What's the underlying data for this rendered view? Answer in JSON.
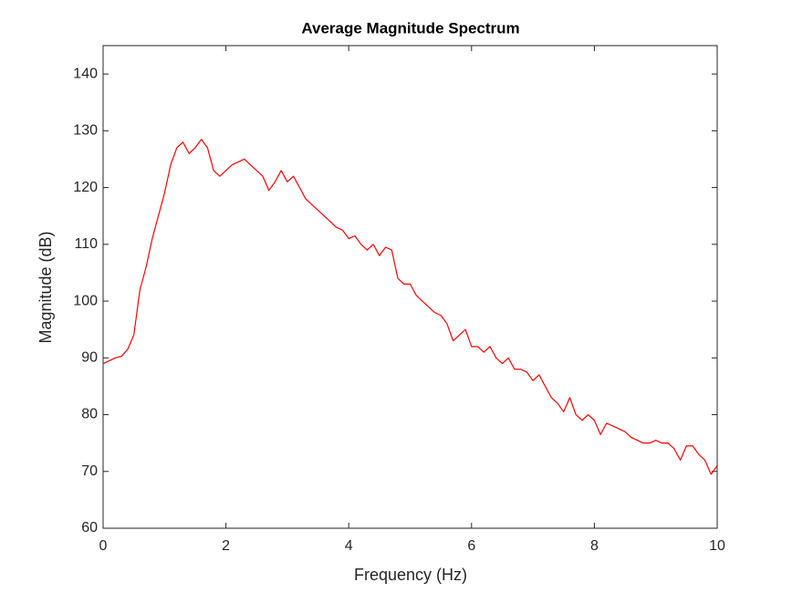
{
  "chart_data": {
    "type": "line",
    "title": "Average Magnitude Spectrum",
    "x_label": "Frequency (Hz)",
    "y_label": "Magnitude (dB)",
    "x": [
      0,
      0.1,
      0.2,
      0.3,
      0.4,
      0.5,
      0.6,
      0.7,
      0.8,
      0.9,
      1.0,
      1.1,
      1.2,
      1.3,
      1.4,
      1.5,
      1.6,
      1.7,
      1.8,
      1.9,
      2.0,
      2.1,
      2.2,
      2.3,
      2.4,
      2.5,
      2.6,
      2.7,
      2.8,
      2.9,
      3.0,
      3.1,
      3.2,
      3.3,
      3.4,
      3.5,
      3.6,
      3.7,
      3.8,
      3.9,
      4.0,
      4.1,
      4.2,
      4.3,
      4.4,
      4.5,
      4.6,
      4.7,
      4.8,
      4.9,
      5.0,
      5.1,
      5.2,
      5.3,
      5.4,
      5.5,
      5.6,
      5.7,
      5.8,
      5.9,
      6.0,
      6.1,
      6.2,
      6.3,
      6.4,
      6.5,
      6.6,
      6.7,
      6.8,
      6.9,
      7.0,
      7.1,
      7.2,
      7.3,
      7.4,
      7.5,
      7.6,
      7.7,
      7.8,
      7.9,
      8.0,
      8.1,
      8.2,
      8.3,
      8.4,
      8.5,
      8.6,
      8.7,
      8.8,
      8.9,
      9.0,
      9.1,
      9.2,
      9.3,
      9.4,
      9.5,
      9.6,
      9.7,
      9.8,
      9.9,
      10.0
    ],
    "values": [
      89,
      89.5,
      90,
      90.3,
      91.5,
      94,
      102,
      106,
      111,
      115,
      119,
      124,
      127,
      128,
      126,
      127,
      128.5,
      127,
      123,
      122,
      123,
      124,
      124.5,
      125,
      124,
      123,
      122,
      119.5,
      121,
      123,
      121,
      122,
      120,
      118,
      117,
      116,
      115,
      114,
      113,
      112.5,
      111,
      111.5,
      110,
      109,
      110,
      108,
      109.5,
      109,
      104,
      103,
      103,
      101,
      100,
      99,
      98,
      97.5,
      96,
      93,
      94,
      95,
      92,
      92,
      91,
      92,
      90,
      89,
      90,
      88,
      88,
      87.5,
      86,
      87,
      85,
      83,
      82,
      80.5,
      83,
      80,
      79,
      80,
      79,
      76.5,
      78.5,
      78,
      77.5,
      77,
      76,
      75.5,
      75,
      75,
      75.5,
      75,
      75,
      74,
      72,
      74.5,
      74.5,
      73,
      72,
      69.5,
      71
    ],
    "color": "#ff0000",
    "xlim": [
      0,
      10
    ],
    "xticks": [
      0,
      2,
      4,
      6,
      8,
      10
    ],
    "ylim": [
      60,
      145
    ],
    "yticks": [
      60,
      70,
      80,
      90,
      100,
      110,
      120,
      130,
      140
    ],
    "grid": false
  }
}
